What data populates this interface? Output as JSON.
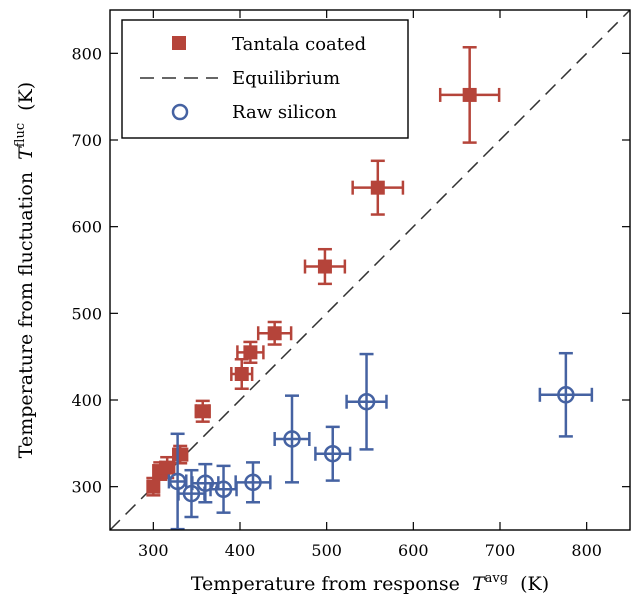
{
  "chart_data": {
    "type": "scatter",
    "xlabel": "Temperature from response",
    "xlabel_symbol": "T",
    "xlabel_sup": "avg",
    "xlabel_unit": "(K)",
    "ylabel": "Temperature from fluctuation",
    "ylabel_symbol": "T",
    "ylabel_sup": "fluc",
    "ylabel_unit": "(K)",
    "xlim": [
      250,
      850
    ],
    "ylim": [
      250,
      850
    ],
    "xticks": [
      300,
      400,
      500,
      600,
      700,
      800
    ],
    "yticks": [
      300,
      400,
      500,
      600,
      700,
      800
    ],
    "grid": false,
    "legend_position": "top-left",
    "series": [
      {
        "name": "Tantala coated",
        "marker": "square",
        "color": "#b5443a",
        "points": [
          {
            "x": 300,
            "y": 300,
            "xerr": 6,
            "yerr": 10
          },
          {
            "x": 308,
            "y": 318,
            "xerr": 8,
            "yerr": 10
          },
          {
            "x": 316,
            "y": 322,
            "xerr": 8,
            "yerr": 12
          },
          {
            "x": 331,
            "y": 337,
            "xerr": 8,
            "yerr": 10
          },
          {
            "x": 357,
            "y": 387,
            "xerr": 8,
            "yerr": 12
          },
          {
            "x": 402,
            "y": 430,
            "xerr": 12,
            "yerr": 17
          },
          {
            "x": 412,
            "y": 455,
            "xerr": 15,
            "yerr": 12
          },
          {
            "x": 440,
            "y": 477,
            "xerr": 19,
            "yerr": 13
          },
          {
            "x": 498,
            "y": 554,
            "xerr": 23,
            "yerr": 20
          },
          {
            "x": 559,
            "y": 645,
            "xerr": 29,
            "yerr": 31
          },
          {
            "x": 665,
            "y": 752,
            "xerr": 34,
            "yerr": 55
          }
        ]
      },
      {
        "name": "Equilibrium",
        "type": "line",
        "style": "dashed",
        "color": "#333333",
        "x": [
          250,
          850
        ],
        "y": [
          250,
          850
        ]
      },
      {
        "name": "Raw silicon",
        "marker": "open-circle",
        "color": "#4562a2",
        "points": [
          {
            "x": 328,
            "y": 306,
            "xerr": 10,
            "yerr": 55
          },
          {
            "x": 344,
            "y": 292,
            "xerr": 15,
            "yerr": 27
          },
          {
            "x": 360,
            "y": 304,
            "xerr": 15,
            "yerr": 22
          },
          {
            "x": 381,
            "y": 297,
            "xerr": 15,
            "yerr": 27
          },
          {
            "x": 415,
            "y": 305,
            "xerr": 20,
            "yerr": 23
          },
          {
            "x": 460,
            "y": 355,
            "xerr": 20,
            "yerr": 50
          },
          {
            "x": 507,
            "y": 338,
            "xerr": 20,
            "yerr": 31
          },
          {
            "x": 546,
            "y": 398,
            "xerr": 23,
            "yerr": 55
          },
          {
            "x": 776,
            "y": 406,
            "xerr": 30,
            "yerr": 48
          }
        ]
      }
    ]
  }
}
